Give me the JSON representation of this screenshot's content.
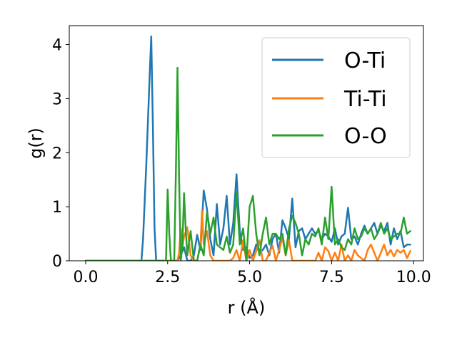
{
  "chart_data": {
    "type": "line",
    "title": "",
    "xlabel": "r (Å)",
    "ylabel": "g(r)",
    "xlim": [
      -0.5,
      10.3
    ],
    "ylim": [
      0,
      4.35
    ],
    "xticks": [
      0.0,
      2.5,
      5.0,
      7.5,
      10.0
    ],
    "xtick_labels": [
      "0.0",
      "2.5",
      "5.0",
      "7.5",
      "10.0"
    ],
    "yticks": [
      0,
      1,
      2,
      3,
      4
    ],
    "ytick_labels": [
      "0",
      "1",
      "2",
      "3",
      "4"
    ],
    "grid": false,
    "legend_position": "upper right",
    "series": [
      {
        "name": "O-Ti",
        "color": "#1f77b4",
        "x": [
          0.0,
          1.7,
          1.75,
          1.85,
          1.95,
          2.0,
          2.05,
          2.1,
          2.15,
          2.5,
          2.6,
          2.7,
          2.8,
          2.9,
          3.0,
          3.1,
          3.2,
          3.3,
          3.4,
          3.5,
          3.6,
          3.7,
          3.8,
          3.9,
          4.0,
          4.1,
          4.2,
          4.3,
          4.4,
          4.5,
          4.6,
          4.7,
          4.8,
          4.9,
          5.0,
          5.1,
          5.2,
          5.3,
          5.4,
          5.5,
          5.6,
          5.7,
          5.8,
          5.9,
          6.0,
          6.1,
          6.2,
          6.3,
          6.4,
          6.5,
          6.6,
          6.7,
          6.8,
          6.9,
          7.0,
          7.1,
          7.2,
          7.3,
          7.4,
          7.5,
          7.6,
          7.7,
          7.8,
          7.9,
          8.0,
          8.1,
          8.2,
          8.3,
          8.4,
          8.5,
          8.6,
          8.7,
          8.8,
          8.9,
          9.0,
          9.1,
          9.2,
          9.3,
          9.4,
          9.5,
          9.6,
          9.7,
          9.8,
          9.9
        ],
        "y": [
          0.0,
          0.0,
          0.4,
          1.8,
          3.4,
          4.15,
          2.5,
          0.6,
          0.0,
          0.0,
          0.0,
          0.0,
          0.0,
          0.1,
          0.25,
          0.0,
          0.0,
          0.1,
          0.48,
          0.2,
          1.3,
          0.95,
          0.4,
          0.1,
          1.05,
          0.3,
          0.6,
          1.2,
          0.3,
          0.7,
          1.6,
          0.55,
          0.2,
          0.25,
          0.05,
          0.1,
          0.3,
          0.15,
          0.2,
          0.3,
          0.1,
          0.4,
          0.5,
          0.15,
          0.75,
          0.6,
          0.4,
          1.15,
          0.25,
          0.55,
          0.6,
          0.4,
          0.5,
          0.6,
          0.5,
          0.55,
          0.4,
          0.5,
          0.45,
          0.35,
          0.6,
          0.3,
          0.45,
          0.5,
          0.98,
          0.4,
          0.45,
          0.3,
          0.5,
          0.65,
          0.5,
          0.6,
          0.7,
          0.5,
          0.65,
          0.55,
          0.7,
          0.3,
          0.6,
          0.4,
          0.55,
          0.25,
          0.3,
          0.3
        ]
      },
      {
        "name": "Ti-Ti",
        "color": "#ff7f0e",
        "x": [
          0.0,
          2.8,
          2.85,
          2.9,
          2.95,
          3.0,
          3.1,
          3.2,
          3.3,
          3.4,
          3.5,
          3.55,
          3.6,
          3.7,
          3.8,
          3.9,
          4.0,
          4.1,
          4.2,
          4.3,
          4.4,
          4.5,
          4.6,
          4.7,
          4.8,
          4.9,
          5.0,
          5.1,
          5.2,
          5.3,
          5.4,
          5.5,
          5.6,
          5.7,
          5.8,
          5.9,
          6.0,
          6.1,
          6.2,
          6.3,
          6.4,
          6.5,
          6.6,
          6.7,
          6.8,
          6.9,
          7.0,
          7.1,
          7.2,
          7.3,
          7.4,
          7.5,
          7.6,
          7.7,
          7.8,
          7.9,
          8.0,
          8.1,
          8.2,
          8.3,
          8.4,
          8.5,
          8.6,
          8.7,
          8.8,
          8.9,
          9.0,
          9.1,
          9.2,
          9.3,
          9.4,
          9.5,
          9.6,
          9.7,
          9.8,
          9.9
        ],
        "y": [
          0.0,
          0.0,
          0.15,
          0.6,
          0.25,
          0.45,
          0.62,
          0.1,
          0.0,
          0.0,
          0.3,
          0.93,
          0.3,
          0.55,
          0.1,
          0.0,
          0.0,
          0.0,
          0.0,
          0.0,
          0.0,
          0.05,
          0.2,
          0.0,
          0.38,
          0.0,
          0.2,
          0.0,
          0.18,
          0.38,
          0.0,
          0.0,
          0.15,
          0.28,
          0.0,
          0.2,
          0.43,
          0.1,
          0.38,
          0.0,
          0.0,
          0.0,
          0.0,
          0.0,
          0.0,
          0.0,
          0.0,
          0.15,
          0.0,
          0.25,
          0.18,
          0.0,
          0.15,
          0.0,
          0.3,
          0.0,
          0.1,
          0.0,
          0.2,
          0.1,
          0.05,
          0.0,
          0.2,
          0.3,
          0.15,
          0.0,
          0.15,
          0.3,
          0.1,
          0.2,
          0.08,
          0.2,
          0.15,
          0.2,
          0.05,
          0.18
        ]
      },
      {
        "name": "O-O",
        "color": "#2ca02c",
        "x": [
          0.0,
          2.45,
          2.5,
          2.55,
          2.6,
          2.7,
          2.75,
          2.8,
          2.85,
          2.9,
          2.95,
          3.0,
          3.05,
          3.1,
          3.2,
          3.3,
          3.4,
          3.5,
          3.6,
          3.7,
          3.8,
          3.9,
          4.0,
          4.1,
          4.2,
          4.3,
          4.4,
          4.5,
          4.6,
          4.7,
          4.8,
          4.9,
          5.0,
          5.1,
          5.2,
          5.3,
          5.4,
          5.5,
          5.6,
          5.7,
          5.8,
          5.9,
          6.0,
          6.1,
          6.2,
          6.3,
          6.4,
          6.5,
          6.6,
          6.7,
          6.8,
          6.9,
          7.0,
          7.1,
          7.2,
          7.3,
          7.4,
          7.5,
          7.6,
          7.7,
          7.8,
          7.9,
          8.0,
          8.1,
          8.2,
          8.3,
          8.4,
          8.5,
          8.6,
          8.7,
          8.8,
          8.9,
          9.0,
          9.1,
          9.2,
          9.3,
          9.4,
          9.5,
          9.6,
          9.7,
          9.8,
          9.9
        ],
        "y": [
          0.0,
          0.0,
          1.32,
          0.5,
          0.0,
          0.0,
          1.6,
          3.57,
          1.5,
          0.0,
          0.3,
          1.25,
          0.6,
          0.1,
          0.55,
          0.0,
          0.0,
          0.3,
          0.1,
          0.9,
          0.5,
          0.8,
          0.3,
          0.25,
          0.2,
          0.45,
          0.15,
          0.3,
          1.28,
          0.3,
          0.6,
          0.0,
          1.0,
          1.2,
          0.5,
          0.1,
          0.5,
          0.8,
          0.3,
          0.5,
          0.5,
          0.4,
          0.5,
          0.1,
          0.6,
          0.83,
          0.7,
          0.5,
          0.1,
          0.4,
          0.3,
          0.5,
          0.45,
          0.6,
          0.3,
          0.8,
          0.4,
          1.37,
          0.3,
          0.4,
          0.25,
          0.2,
          0.4,
          0.3,
          0.6,
          0.4,
          0.45,
          0.6,
          0.5,
          0.6,
          0.4,
          0.5,
          0.7,
          0.5,
          0.6,
          0.4,
          0.45,
          0.5,
          0.5,
          0.8,
          0.5,
          0.55
        ]
      }
    ]
  }
}
